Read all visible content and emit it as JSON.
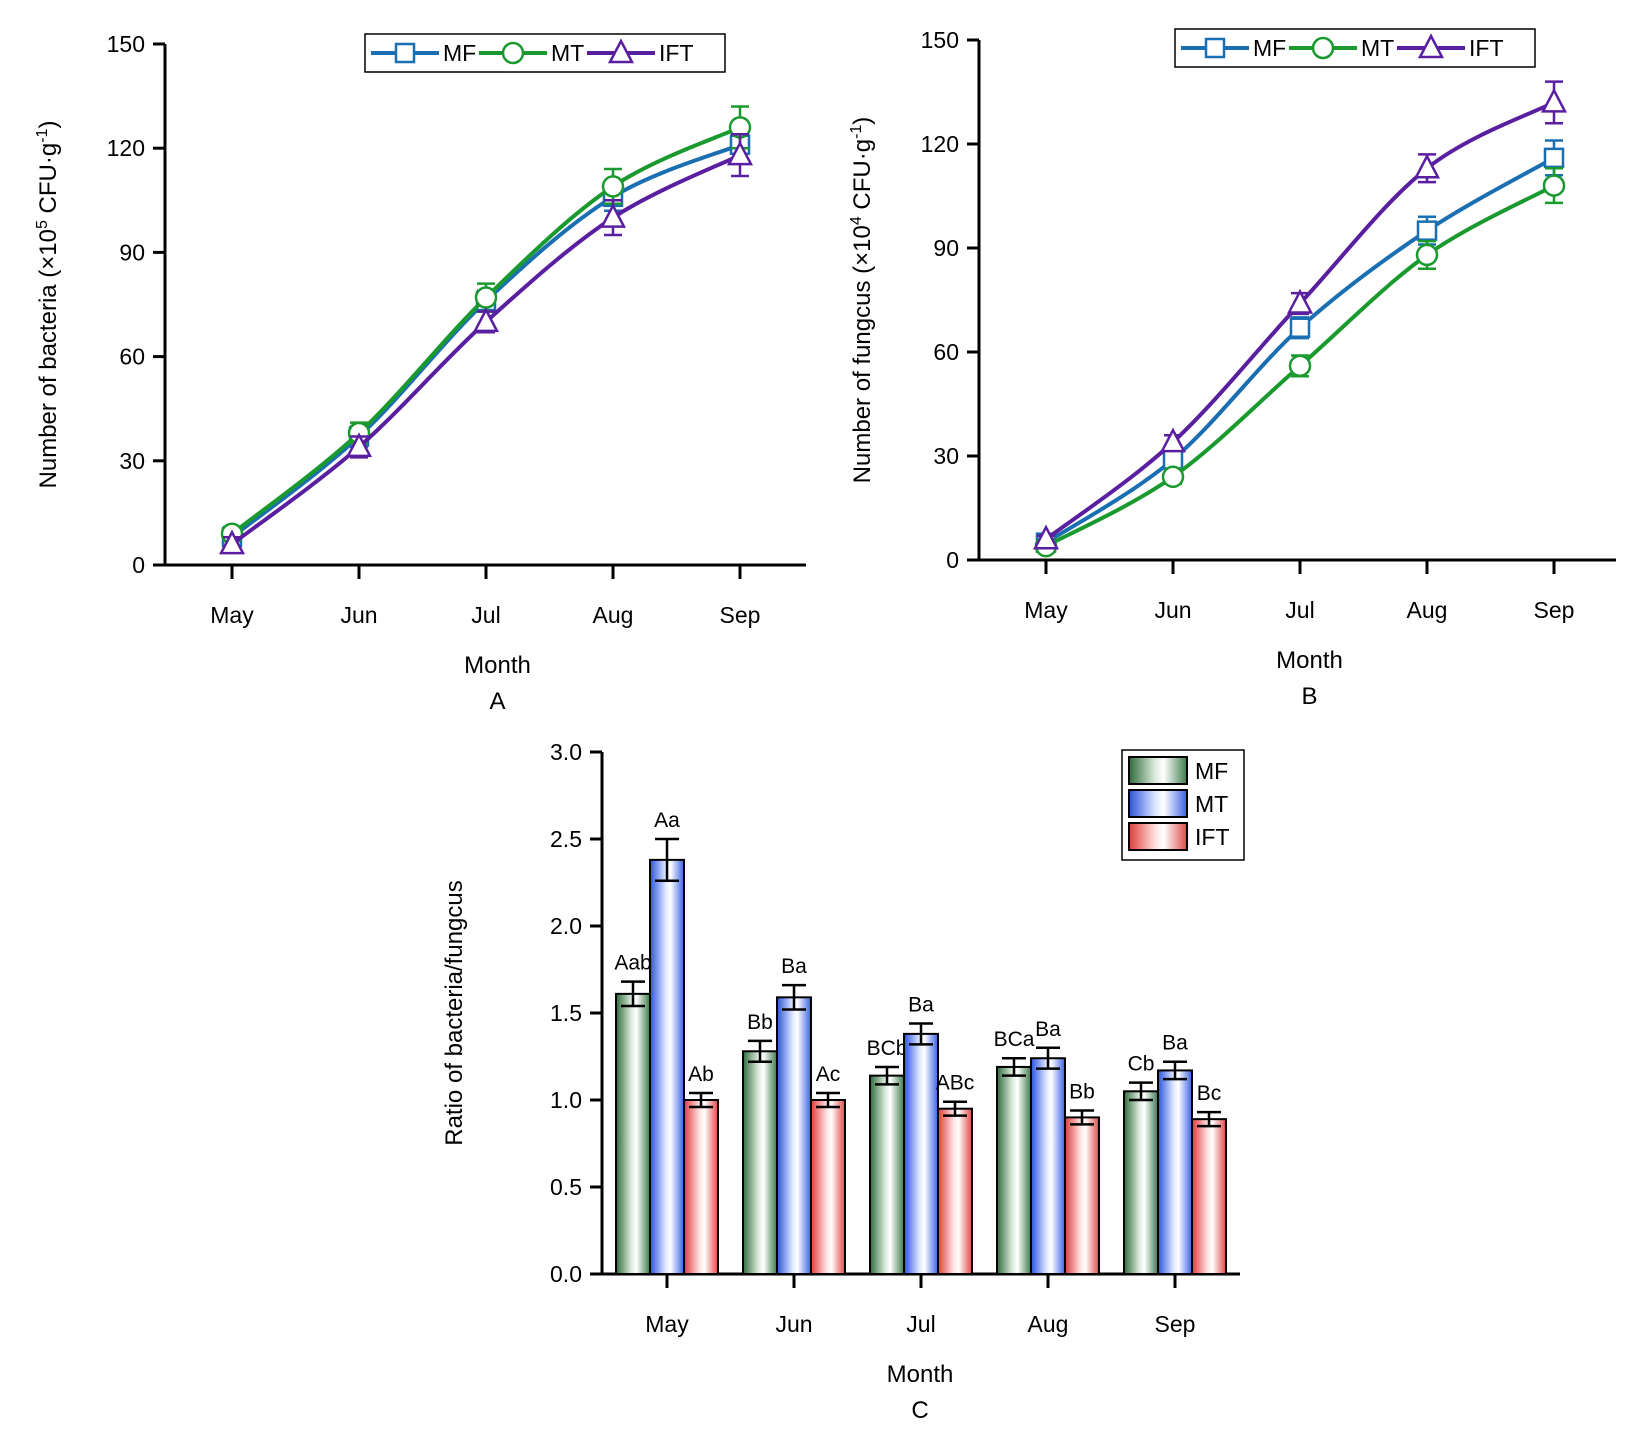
{
  "colors": {
    "MF": "#1a6fb3",
    "MT": "#1a9a2e",
    "IFT": "#5a1fa0",
    "axis": "#000000"
  },
  "chart_data": [
    {
      "id": "A",
      "type": "line",
      "panel_label": "A",
      "xlabel": "Month",
      "ylabel_prefix": "Number of bacteria (×10",
      "ylabel_exp1": "5",
      "ylabel_mid": " CFU·g",
      "ylabel_exp2": "-1",
      "ylabel_suffix": ")",
      "ylim": [
        0,
        150
      ],
      "yticks": [
        0,
        30,
        60,
        90,
        120,
        150
      ],
      "categories": [
        "May",
        "Jun",
        "Jul",
        "Aug",
        "Sep"
      ],
      "legend": [
        "MF",
        "MT",
        "IFT"
      ],
      "series": [
        {
          "name": "MF",
          "marker": "square",
          "values": [
            8,
            37,
            76,
            106,
            121
          ],
          "errors": [
            2,
            3,
            3,
            4,
            4
          ]
        },
        {
          "name": "MT",
          "marker": "circle",
          "values": [
            9,
            38,
            77,
            109,
            126
          ],
          "errors": [
            2,
            3,
            4,
            5,
            6
          ]
        },
        {
          "name": "IFT",
          "marker": "triangle",
          "values": [
            6,
            34,
            70,
            100,
            118
          ],
          "errors": [
            2,
            3,
            3,
            5,
            6
          ]
        }
      ]
    },
    {
      "id": "B",
      "type": "line",
      "panel_label": "B",
      "xlabel": "Month",
      "ylabel_prefix": "Number of fungcus (×10",
      "ylabel_exp1": "4",
      "ylabel_mid": " CFU·g",
      "ylabel_exp2": "-1",
      "ylabel_suffix": ")",
      "ylim": [
        0,
        150
      ],
      "yticks": [
        0,
        30,
        60,
        90,
        120,
        150
      ],
      "categories": [
        "May",
        "Jun",
        "Jul",
        "Aug",
        "Sep"
      ],
      "legend": [
        "MF",
        "MT",
        "IFT"
      ],
      "series": [
        {
          "name": "MF",
          "marker": "square",
          "values": [
            5,
            29,
            67,
            95,
            116
          ],
          "errors": [
            1,
            2,
            3,
            4,
            5
          ]
        },
        {
          "name": "MT",
          "marker": "circle",
          "values": [
            4,
            24,
            56,
            88,
            108
          ],
          "errors": [
            1,
            2,
            3,
            4,
            5
          ]
        },
        {
          "name": "IFT",
          "marker": "triangle",
          "values": [
            6,
            34,
            74,
            113,
            132
          ],
          "errors": [
            1,
            2,
            3,
            4,
            6
          ]
        }
      ]
    },
    {
      "id": "C",
      "type": "bar",
      "panel_label": "C",
      "xlabel": "Month",
      "ylabel": "Ratio of bacteria/fungcus",
      "ylim": [
        0,
        3.0
      ],
      "yticks": [
        "0.0",
        "0.5",
        "1.0",
        "1.5",
        "2.0",
        "2.5",
        "3.0"
      ],
      "categories": [
        "May",
        "Jun",
        "Jul",
        "Aug",
        "Sep"
      ],
      "legend": [
        "MF",
        "MT",
        "IFT"
      ],
      "series": [
        {
          "name": "MF",
          "fill": "green",
          "values": [
            1.61,
            1.28,
            1.14,
            1.19,
            1.05
          ],
          "errors": [
            0.07,
            0.06,
            0.05,
            0.05,
            0.05
          ],
          "labels": [
            "Aab",
            "Bb",
            "BCb",
            "BCa",
            "Cb"
          ]
        },
        {
          "name": "MT",
          "fill": "blue",
          "values": [
            2.38,
            1.59,
            1.38,
            1.24,
            1.17
          ],
          "errors": [
            0.12,
            0.07,
            0.06,
            0.06,
            0.05
          ],
          "labels": [
            "Aa",
            "Ba",
            "Ba",
            "Ba",
            "Ba"
          ]
        },
        {
          "name": "IFT",
          "fill": "red",
          "values": [
            1.0,
            1.0,
            0.95,
            0.9,
            0.89
          ],
          "errors": [
            0.04,
            0.04,
            0.04,
            0.04,
            0.04
          ],
          "labels": [
            "Ab",
            "Ac",
            "ABc",
            "Bb",
            "Bc"
          ]
        }
      ]
    }
  ]
}
